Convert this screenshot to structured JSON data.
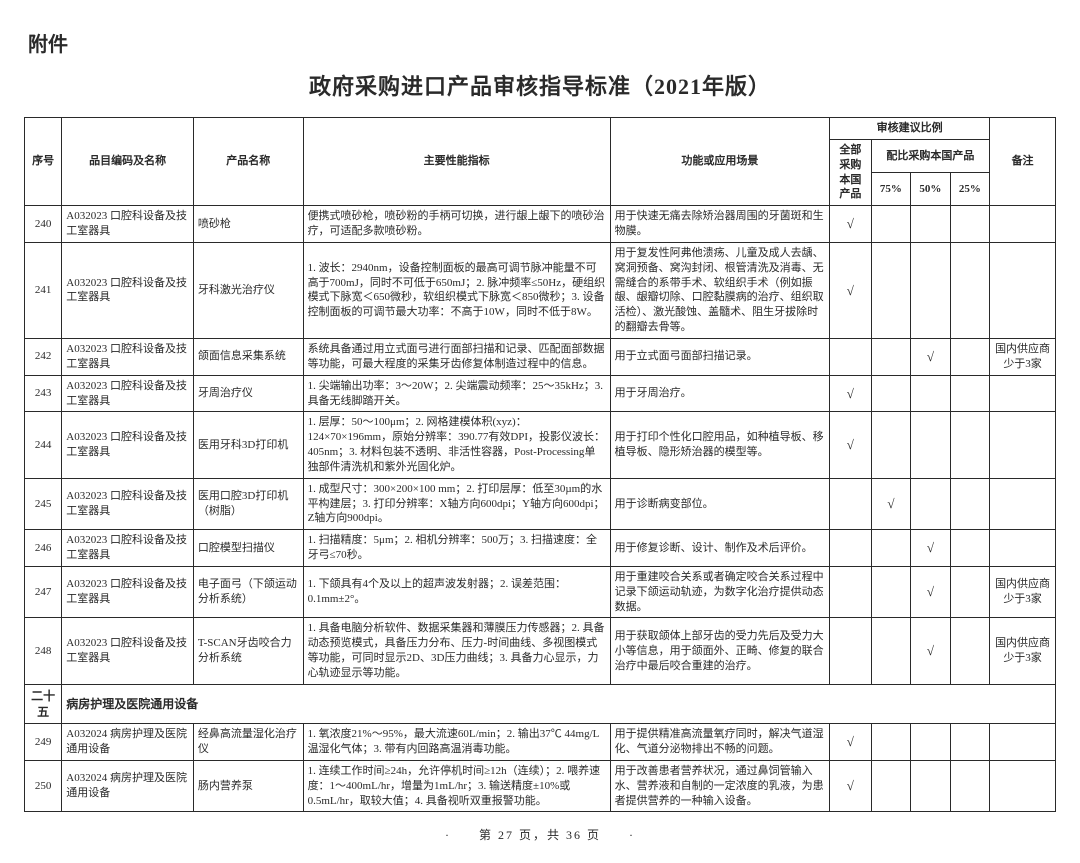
{
  "attachment_label": "附件",
  "title": "政府采购进口产品审核指导标准（2021年版）",
  "headers": {
    "seq": "序号",
    "code": "品目编码及名称",
    "name": "产品名称",
    "spec": "主要性能指标",
    "func": "功能或应用场景",
    "ratio_group": "审核建议比例",
    "full": "全部采购本国产品",
    "partial_group": "配比采购本国产品",
    "p75": "75%",
    "p50": "50%",
    "p25": "25%",
    "note": "备注"
  },
  "check_mark": "√",
  "rows": [
    {
      "seq": "240",
      "code": "A032023 口腔科设备及技工室器具",
      "name": "喷砂枪",
      "spec": "便携式喷砂枪，喷砂粉的手柄可切换，进行龈上龈下的喷砂治疗，可适配多款喷砂粉。",
      "func": "用于快速无痛去除矫治器周围的牙菌斑和生物膜。",
      "full": true,
      "p75": false,
      "p50": false,
      "p25": false,
      "note": ""
    },
    {
      "seq": "241",
      "code": "A032023 口腔科设备及技工室器具",
      "name": "牙科激光治疗仪",
      "spec": "1. 波长：2940nm，设备控制面板的最高可调节脉冲能量不可高于700mJ，同时不可低于650mJ；2. 脉冲频率≤50Hz，硬组织模式下脉宽＜650微秒，软组织模式下脉宽＜850微秒；3. 设备控制面板的可调节最大功率：不高于10W，同时不低于8W。",
      "func": "用于复发性阿弗他溃疡、儿童及成人去龋、窝洞预备、窝沟封闭、根管清洗及消毒、无需缝合的系带手术、软组织手术（例如振龈、龈瓣切除、口腔黏膜病的治疗、组织取活检）、激光酸蚀、盖髓术、阻生牙拔除时的翻瓣去骨等。",
      "full": true,
      "p75": false,
      "p50": false,
      "p25": false,
      "note": ""
    },
    {
      "seq": "242",
      "code": "A032023 口腔科设备及技工室器具",
      "name": "颌面信息采集系统",
      "spec": "系统具备通过用立式面弓进行面部扫描和记录、匹配面部数据等功能，可最大程度的采集牙齿修复体制造过程中的信息。",
      "func": "用于立式面弓面部扫描记录。",
      "full": false,
      "p75": false,
      "p50": true,
      "p25": false,
      "note": "国内供应商少于3家"
    },
    {
      "seq": "243",
      "code": "A032023 口腔科设备及技工室器具",
      "name": "牙周治疗仪",
      "spec": "1. 尖端输出功率：3～20W；2. 尖端震动频率：25～35kHz；3. 具备无线脚踏开关。",
      "func": "用于牙周治疗。",
      "full": true,
      "p75": false,
      "p50": false,
      "p25": false,
      "note": ""
    },
    {
      "seq": "244",
      "code": "A032023 口腔科设备及技工室器具",
      "name": "医用牙科3D打印机",
      "spec": "1. 层厚：50～100μm；2. 网格建模体积(xyz)：124×70×196mm，原始分辨率：390.77有效DPI，投影仪波长：405nm；3. 材料包装不透明、非活性容器，Post-Processing单独部件清洗机和紫外光固化炉。",
      "func": "用于打印个性化口腔用品，如种植导板、移植导板、隐形矫治器的模型等。",
      "full": true,
      "p75": false,
      "p50": false,
      "p25": false,
      "note": ""
    },
    {
      "seq": "245",
      "code": "A032023 口腔科设备及技工室器具",
      "name": "医用口腔3D打印机（树脂）",
      "spec": "1. 成型尺寸：300×200×100 mm；2. 打印层厚：低至30µm的水平构建层；3. 打印分辨率：X轴方向600dpi；Y轴方向600dpi；Z轴方向900dpi。",
      "func": "用于诊断病变部位。",
      "full": false,
      "p75": true,
      "p50": false,
      "p25": false,
      "note": ""
    },
    {
      "seq": "246",
      "code": "A032023 口腔科设备及技工室器具",
      "name": "口腔模型扫描仪",
      "spec": "1. 扫描精度：5μm；2. 相机分辨率：500万；3. 扫描速度：全牙弓≤70秒。",
      "func": "用于修复诊断、设计、制作及术后评价。",
      "full": false,
      "p75": false,
      "p50": true,
      "p25": false,
      "note": ""
    },
    {
      "seq": "247",
      "code": "A032023 口腔科设备及技工室器具",
      "name": "电子面弓（下颌运动分析系统）",
      "spec": "1. 下颌具有4个及以上的超声波发射器；2. 误差范围：0.1mm±2°。",
      "func": "用于重建咬合关系或者确定咬合关系过程中记录下颌运动轨迹，为数字化治疗提供动态数据。",
      "full": false,
      "p75": false,
      "p50": true,
      "p25": false,
      "note": "国内供应商少于3家"
    },
    {
      "seq": "248",
      "code": "A032023 口腔科设备及技工室器具",
      "name": "T-SCAN牙齿咬合力分析系统",
      "spec": "1. 具备电脑分析软件、数据采集器和薄膜压力传感器；2. 具备动态预览模式，具备压力分布、压力-时间曲线、多视图模式等功能，可同时显示2D、3D压力曲线；3. 具备力心显示，力心轨迹显示等功能。",
      "func": "用于获取颌体上部牙齿的受力先后及受力大小等信息，用于颌面外、正畸、修复的联合治疗中最后咬合重建的治疗。",
      "full": false,
      "p75": false,
      "p50": true,
      "p25": false,
      "note": "国内供应商少于3家"
    },
    {
      "seq": "二十五",
      "code": "病房护理及医院通用设备",
      "section": true
    },
    {
      "seq": "249",
      "code": "A032024 病房护理及医院通用设备",
      "name": "经鼻高流量湿化治疗仪",
      "spec": "1. 氧浓度21%～95%，最大流速60L/min；2. 输出37℃ 44mg/L温湿化气体；3. 带有内回路高温消毒功能。",
      "func": "用于提供精准高流量氧疗同时，解决气道湿化、气道分泌物排出不畅的问题。",
      "full": true,
      "p75": false,
      "p50": false,
      "p25": false,
      "note": ""
    },
    {
      "seq": "250",
      "code": "A032024 病房护理及医院通用设备",
      "name": "肠内营养泵",
      "spec": "1. 连续工作时间≥24h，允许停机时间≥12h（连续）；2. 喂养速度：1～400mL/hr，增量为1mL/hr；3. 输送精度±10%或0.5mL/hr，取较大值；4. 具备视听双重报警功能。",
      "func": "用于改善患者营养状况，通过鼻饲管输入水、营养液和自制的一定浓度的乳液，为患者提供营养的一种输入设备。",
      "full": true,
      "p75": false,
      "p50": false,
      "p25": false,
      "note": ""
    }
  ],
  "pager": "·　　第 27 页，共 36 页　　·"
}
